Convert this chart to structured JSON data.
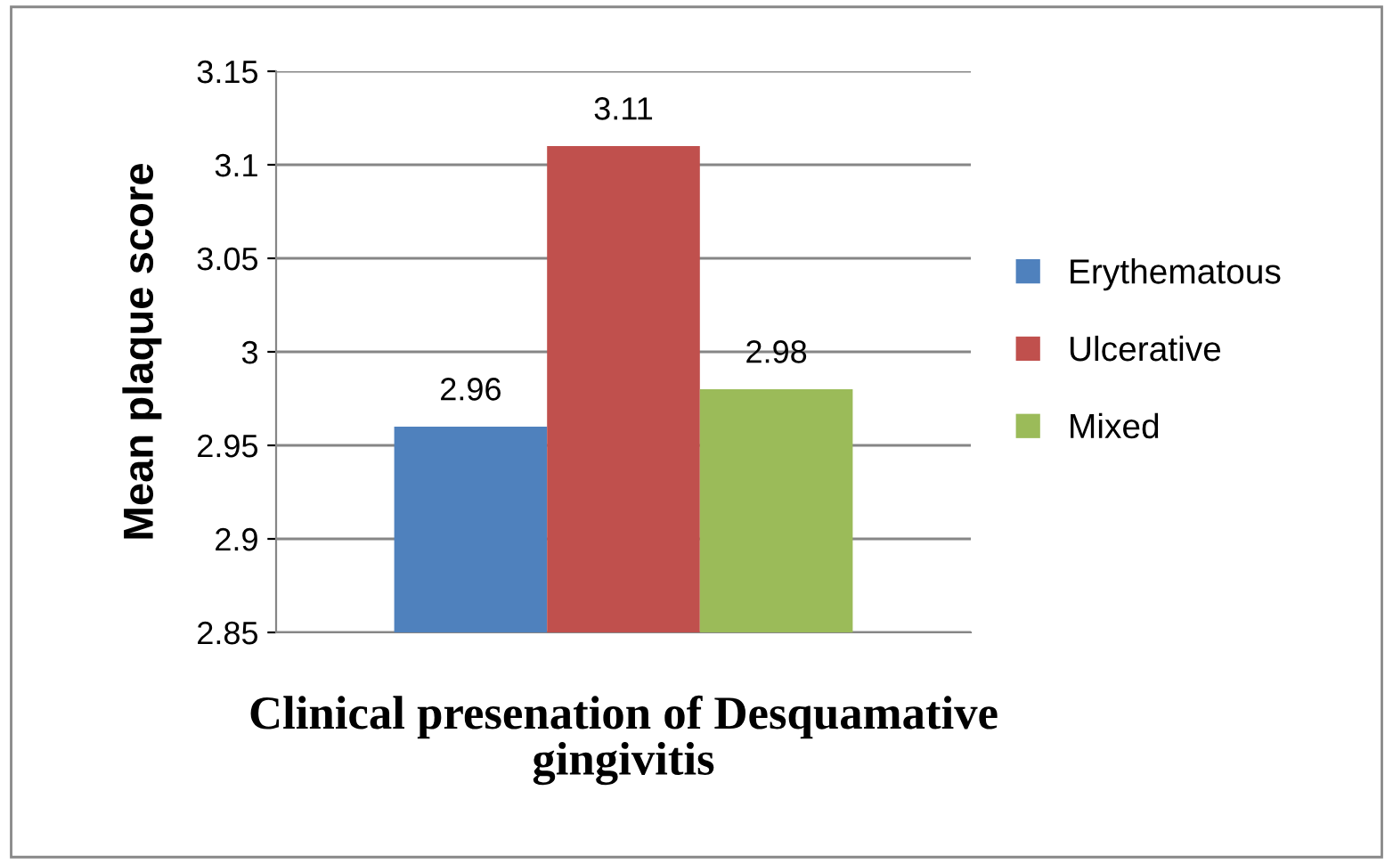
{
  "chart_data": {
    "type": "bar",
    "xlabel": "Clinical presenation of Desquamative\ngingivitis",
    "ylabel": "Mean plaque score",
    "categories": [
      null
    ],
    "series": [
      {
        "name": "Erythematous",
        "color": "#4f81bd",
        "values": [
          2.96
        ]
      },
      {
        "name": "Ulcerative",
        "color": "#c0504d",
        "values": [
          3.11
        ]
      },
      {
        "name": "Mixed",
        "color": "#9bbb59",
        "values": [
          2.98
        ]
      }
    ],
    "ylim": [
      2.85,
      3.15
    ],
    "yticks": [
      2.85,
      2.9,
      2.95,
      3,
      3.05,
      3.1,
      3.15
    ],
    "grid": "y",
    "legend": "right",
    "data_labels": true
  }
}
